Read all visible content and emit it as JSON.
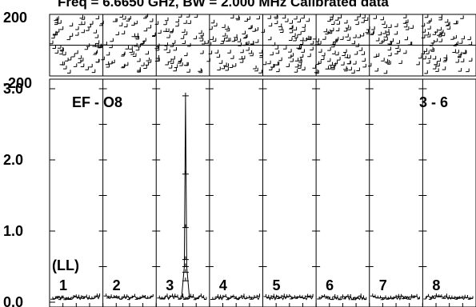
{
  "chart_data": {
    "type": "scatter",
    "title": "Freq = 6.6650 GHz, BW = 2.000 MHz   Calibrated data",
    "phase_panel": {
      "ylim": [
        -200,
        200
      ],
      "tick_labels": [
        "200",
        "-200"
      ]
    },
    "amplitude_panel": {
      "ylim": [
        0,
        3.0
      ],
      "tick_labels": [
        "3.0",
        "2.0",
        "1.0",
        "0.0"
      ],
      "ticks": [
        3.0,
        2.0,
        1.0,
        0.0
      ]
    },
    "source_label": "EF - O8",
    "baseline_label": "3 - 6",
    "polarization_label": "(LL)",
    "segments": [
      {
        "label": "1",
        "peak": 0.0
      },
      {
        "label": "2",
        "peak": 0.0
      },
      {
        "label": "3",
        "peak": 2.9
      },
      {
        "label": "4",
        "peak": 0.0
      },
      {
        "label": "5",
        "peak": 0.0
      },
      {
        "label": "6",
        "peak": 0.0
      },
      {
        "label": "7",
        "peak": 0.0
      },
      {
        "label": "8",
        "peak": 0.0
      }
    ],
    "spike": {
      "segment": "3",
      "position": 0.55,
      "peak": 2.9,
      "points": [
        2.9,
        1.8,
        1.05,
        0.6,
        0.5,
        0.42,
        0.3
      ]
    },
    "noise_level": 0.06
  }
}
